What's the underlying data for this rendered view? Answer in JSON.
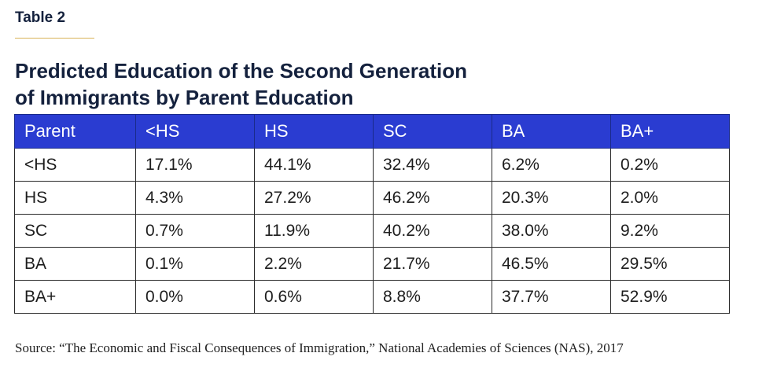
{
  "table_label": "Table 2",
  "title": {
    "line1": "Predicted Education of the Second Generation",
    "line2": "of Immigrants by Parent Education"
  },
  "table": {
    "headers": [
      "Parent",
      "<HS",
      "HS",
      "SC",
      "BA",
      "BA+"
    ],
    "rows": [
      [
        "<HS",
        "17.1%",
        "44.1%",
        "32.4%",
        "6.2%",
        "0.2%"
      ],
      [
        "HS",
        "4.3%",
        "27.2%",
        "46.2%",
        "20.3%",
        "2.0%"
      ],
      [
        "SC",
        "0.7%",
        "11.9%",
        "40.2%",
        "38.0%",
        "9.2%"
      ],
      [
        "BA",
        "0.1%",
        "2.2%",
        "21.7%",
        "46.5%",
        "29.5%"
      ],
      [
        "BA+",
        "0.0%",
        "0.6%",
        "8.8%",
        "37.7%",
        "52.9%"
      ]
    ]
  },
  "source": "Source: “The Economic and Fiscal Consequences of Immigration,” National Academies of Sciences (NAS), 2017",
  "colors": {
    "header_bg": "#2a3cd1",
    "text_navy": "#14213d",
    "rule_gold": "#d8b257"
  }
}
